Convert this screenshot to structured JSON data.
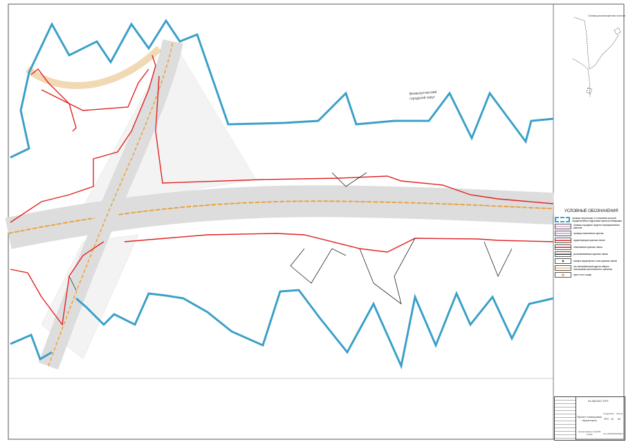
{
  "scheme": {
    "title": "Схема расположения листов"
  },
  "map": {
    "region_label_1": "Великоустюгский",
    "region_label_2": "городской округ",
    "colors": {
      "boundary": "#3aa0c8",
      "red_line": "#e02020",
      "road": "#f0a030",
      "frame": "#555555"
    }
  },
  "legend": {
    "title": "УСЛОВНЫЕ ОБОЗНАЧЕНИЯ",
    "items": [
      {
        "label": "границы территории, в отношении которой осуществляется подготовка проекта планировки",
        "icon": "blue-dashed-box"
      },
      {
        "label": "границы городских округов и муниципальных районов",
        "icon": "pink-dashed-line"
      },
      {
        "label": "границы населенных пунктов",
        "icon": "violet-line"
      },
      {
        "label": "существующие красные линии",
        "icon": "red-line"
      },
      {
        "label": "отменяемые красные линии",
        "icon": "red-line-crossed"
      },
      {
        "label": "устанавливаемые красные линии",
        "icon": "black-line"
      },
      {
        "label": "номера характерных точек красных линий",
        "icon": "point-marker"
      },
      {
        "label": "ось автомобильной дороги общего пользования регионального значения",
        "icon": "orange-dashed-line"
      },
      {
        "label": "пункт и его номер",
        "icon": "station-marker"
      }
    ]
  },
  "title_block": {
    "code": "03-06/2021-ППТ",
    "sheet_name": "Проект планировки территории",
    "drawing_name": "Чертеж красных линий М 1:1000",
    "stage_header": "Стадия",
    "sheet_header": "Лист",
    "sheets_header": "Листов",
    "stage": "ППТ",
    "sheet": "15",
    "sheets": "63",
    "org": "ОО «ИНЖГЕОПРОЕКТ»"
  }
}
